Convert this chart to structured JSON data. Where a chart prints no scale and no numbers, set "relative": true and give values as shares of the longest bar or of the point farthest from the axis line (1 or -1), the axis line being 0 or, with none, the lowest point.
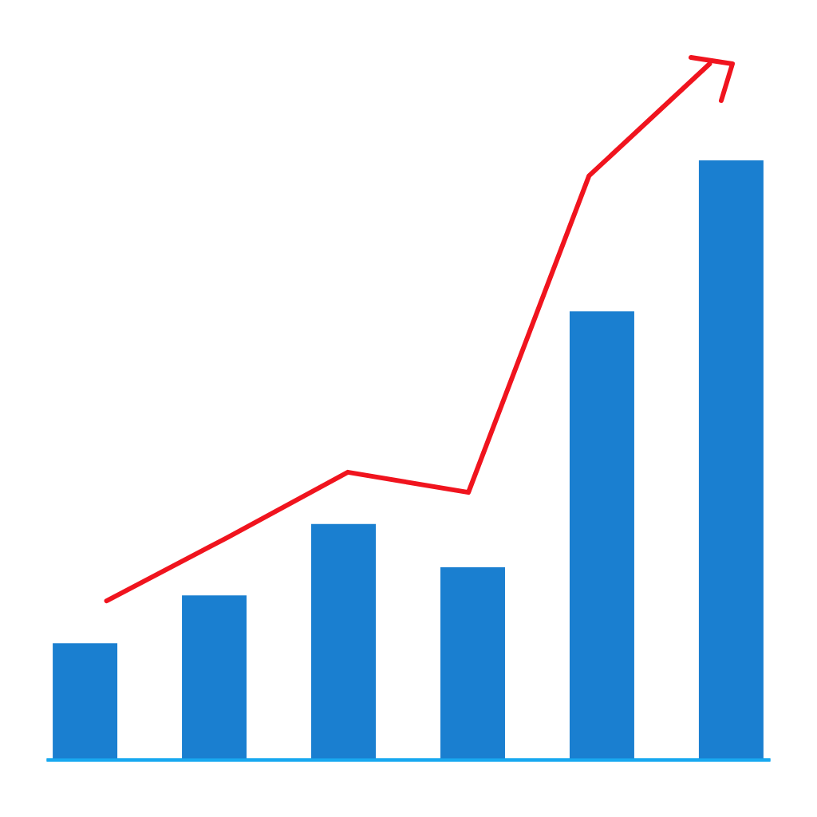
{
  "chart_data": [
    {
      "type": "bar",
      "relative": true,
      "color": "#1a7fd0",
      "categories": [
        null,
        null,
        null,
        null,
        null,
        null
      ],
      "values": [
        0.194,
        0.274,
        0.393,
        0.321,
        0.748,
        1.0
      ]
    },
    {
      "type": "line",
      "relative": true,
      "color": "#f0141e",
      "categories": [
        null,
        null,
        null,
        null,
        null,
        null
      ],
      "values": [
        0.228,
        0.319,
        0.413,
        0.384,
        0.839,
        1.0
      ]
    }
  ]
}
